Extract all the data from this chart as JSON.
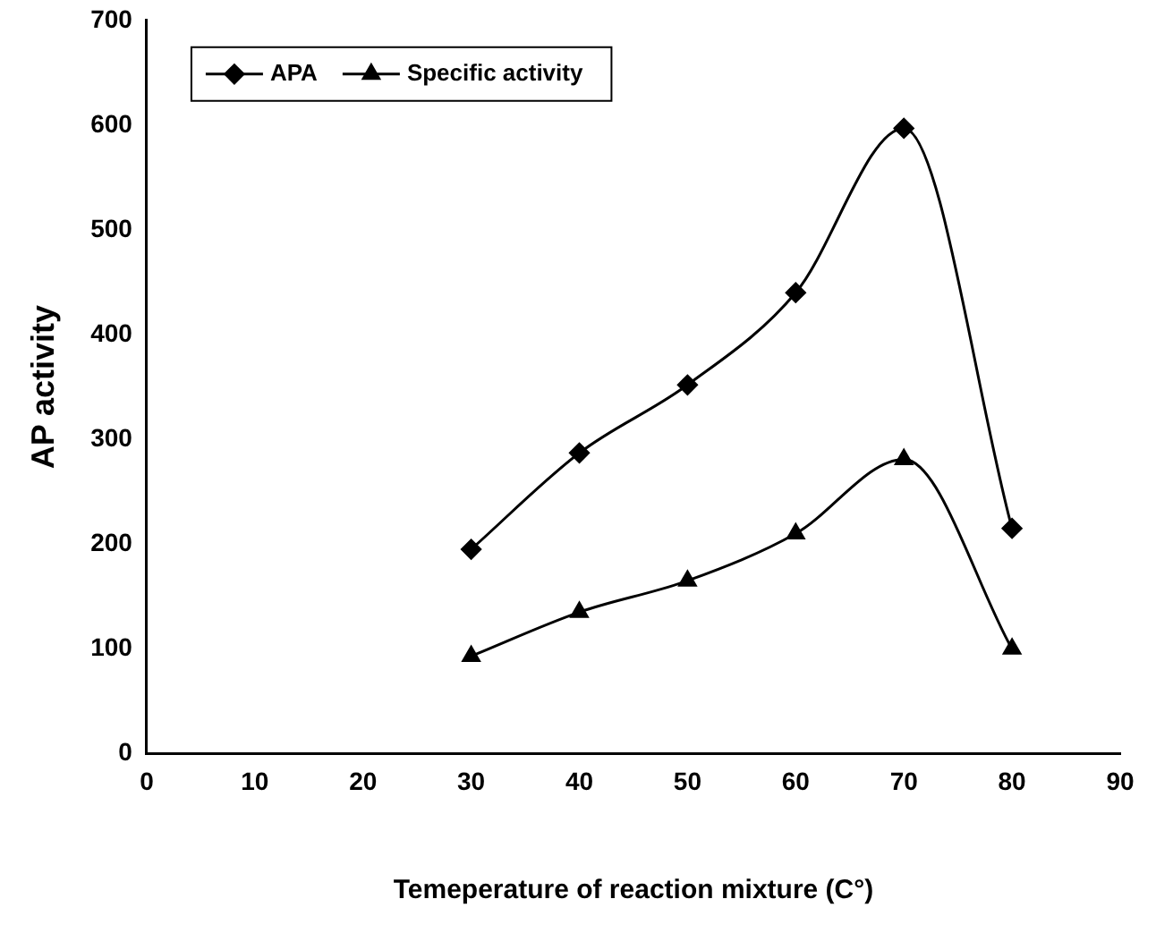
{
  "chart_data": {
    "type": "line",
    "xlabel": "Temeperature of reaction mixture (C°)",
    "ylabel": "AP activity",
    "x": [
      30,
      40,
      50,
      60,
      70,
      80
    ],
    "series": [
      {
        "name": "APA",
        "color": "#000000",
        "marker": "diamond",
        "values": [
          195,
          287,
          352,
          440,
          597,
          215
        ]
      },
      {
        "name": "Specific activity",
        "color": "#000000",
        "marker": "triangle",
        "values": [
          93,
          135,
          165,
          210,
          281,
          100
        ]
      }
    ],
    "xlim": [
      0,
      90
    ],
    "xticks": [
      0,
      10,
      20,
      30,
      40,
      50,
      60,
      70,
      80,
      90
    ],
    "ylim": [
      0,
      700
    ],
    "yticks": [
      0,
      100,
      200,
      300,
      400,
      500,
      600,
      700
    ],
    "grid": false,
    "legend": "top left",
    "line_style": "solid"
  }
}
